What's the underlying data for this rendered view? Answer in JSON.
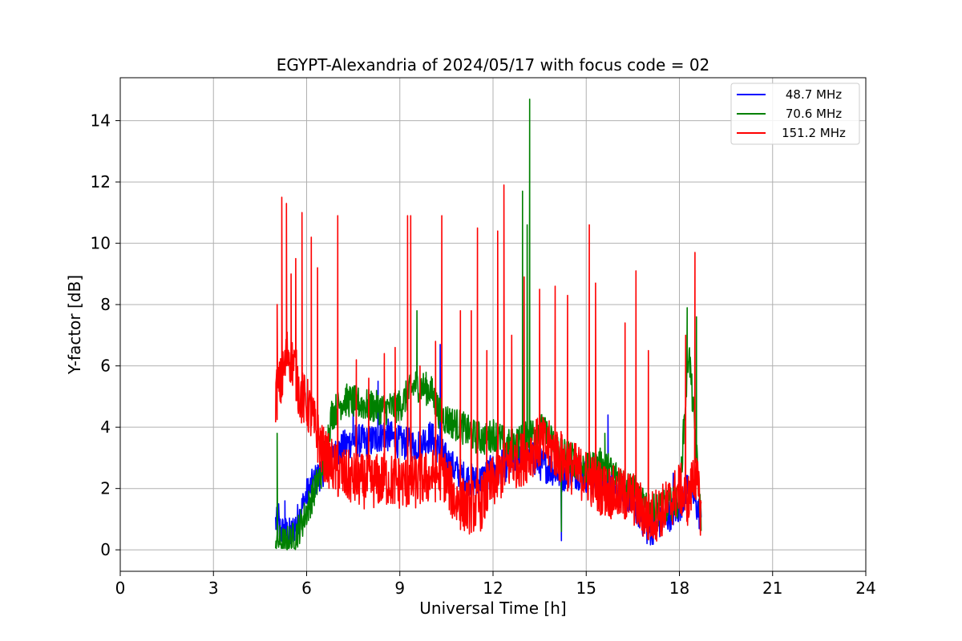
{
  "chart_data": {
    "type": "line",
    "title": "EGYPT-Alexandria of 2024/05/17 with focus code = 02",
    "xlabel": "Universal Time [h]",
    "ylabel": "Y-factor [dB]",
    "xlim": [
      0,
      24
    ],
    "ylim": [
      -0.7,
      15.4
    ],
    "xticks": [
      0,
      3,
      6,
      9,
      12,
      15,
      18,
      21,
      24
    ],
    "yticks": [
      0,
      2,
      4,
      6,
      8,
      10,
      12,
      14
    ],
    "grid": true,
    "legend_position": "top-right",
    "series": [
      {
        "name": "48.7 MHz",
        "color": "#0000ff",
        "x": [
          5.0,
          5.2,
          5.5,
          5.8,
          6.0,
          6.3,
          6.6,
          7.0,
          7.5,
          8.0,
          8.5,
          9.0,
          9.5,
          10.0,
          10.3,
          10.6,
          11.0,
          11.5,
          12.0,
          12.5,
          13.0,
          13.5,
          14.0,
          14.2,
          14.5,
          15.0,
          15.5,
          16.0,
          16.5,
          17.0,
          17.5,
          18.0,
          18.3,
          18.7
        ],
        "y": [
          0.9,
          0.6,
          0.5,
          1.2,
          1.8,
          2.3,
          2.7,
          3.2,
          3.6,
          3.5,
          3.8,
          3.5,
          3.4,
          3.7,
          3.2,
          2.8,
          2.4,
          2.2,
          2.6,
          2.8,
          3.2,
          2.8,
          2.6,
          2.4,
          2.6,
          2.4,
          2.2,
          2.0,
          1.6,
          0.6,
          1.0,
          1.4,
          2.2,
          1.0
        ],
        "spikes": [
          [
            5.1,
            1.5
          ],
          [
            5.3,
            1.6
          ],
          [
            7.5,
            4.9
          ],
          [
            8.3,
            5.5
          ],
          [
            10.3,
            6.7
          ],
          [
            13.5,
            4.2
          ],
          [
            14.2,
            0.3
          ],
          [
            15.7,
            4.4
          ],
          [
            17.8,
            2.5
          ]
        ]
      },
      {
        "name": "70.6 MHz",
        "color": "#008000",
        "x": [
          5.0,
          5.1,
          5.3,
          5.6,
          5.9,
          6.2,
          6.5,
          6.8,
          7.2,
          7.6,
          8.0,
          8.5,
          9.0,
          9.5,
          10.0,
          10.3,
          10.6,
          11.0,
          11.4,
          11.8,
          12.0,
          12.5,
          13.0,
          13.5,
          14.0,
          14.5,
          15.0,
          15.5,
          16.0,
          16.5,
          17.0,
          17.5,
          18.0,
          18.3,
          18.7
        ],
        "y": [
          0.4,
          0.3,
          0.2,
          0.4,
          1.0,
          1.8,
          2.6,
          4.4,
          4.9,
          4.8,
          4.7,
          4.6,
          4.7,
          5.4,
          5.2,
          4.4,
          4.2,
          4.0,
          3.7,
          3.6,
          3.8,
          3.4,
          3.6,
          4.0,
          3.4,
          3.0,
          2.6,
          2.8,
          2.4,
          2.0,
          1.2,
          1.4,
          1.6,
          6.6,
          1.0
        ],
        "spikes": [
          [
            5.05,
            3.8
          ],
          [
            9.55,
            7.8
          ],
          [
            12.95,
            11.7
          ],
          [
            13.1,
            10.6
          ],
          [
            13.18,
            14.7
          ],
          [
            14.2,
            0.6
          ],
          [
            15.6,
            3.8
          ],
          [
            18.25,
            7.9
          ],
          [
            18.55,
            7.6
          ]
        ]
      },
      {
        "name": "151.2 MHz",
        "color": "#ff0000",
        "x": [
          5.0,
          5.2,
          5.4,
          5.6,
          5.8,
          6.0,
          6.2,
          6.5,
          7.0,
          7.5,
          8.0,
          8.5,
          9.0,
          9.5,
          10.0,
          10.4,
          10.8,
          11.2,
          11.6,
          12.0,
          12.5,
          13.0,
          13.5,
          14.0,
          14.5,
          15.0,
          15.5,
          16.0,
          16.5,
          17.0,
          17.3,
          17.6,
          18.0,
          18.3,
          18.5,
          18.7
        ],
        "y": [
          5.0,
          5.5,
          6.5,
          6.0,
          5.0,
          4.8,
          4.2,
          3.2,
          2.5,
          2.3,
          2.2,
          2.3,
          2.2,
          2.2,
          2.4,
          2.5,
          1.6,
          1.4,
          1.5,
          2.2,
          2.8,
          3.0,
          3.5,
          3.2,
          2.7,
          2.4,
          2.0,
          1.8,
          1.7,
          1.0,
          1.2,
          1.4,
          2.0,
          1.6,
          2.6,
          1.2
        ],
        "spikes": [
          [
            5.05,
            8.0
          ],
          [
            5.2,
            11.5
          ],
          [
            5.35,
            11.3
          ],
          [
            5.5,
            9.0
          ],
          [
            5.65,
            9.5
          ],
          [
            5.85,
            11.0
          ],
          [
            6.15,
            10.2
          ],
          [
            6.35,
            9.2
          ],
          [
            7.0,
            10.9
          ],
          [
            7.6,
            6.2
          ],
          [
            8.0,
            5.6
          ],
          [
            8.5,
            6.4
          ],
          [
            8.85,
            6.6
          ],
          [
            9.25,
            10.9
          ],
          [
            9.35,
            10.9
          ],
          [
            9.65,
            6.0
          ],
          [
            10.15,
            6.8
          ],
          [
            10.35,
            10.9
          ],
          [
            10.95,
            7.8
          ],
          [
            11.3,
            7.8
          ],
          [
            11.5,
            10.5
          ],
          [
            11.8,
            6.5
          ],
          [
            12.15,
            10.4
          ],
          [
            12.35,
            11.9
          ],
          [
            12.6,
            7.0
          ],
          [
            13.0,
            8.9
          ],
          [
            13.5,
            8.5
          ],
          [
            14.0,
            8.6
          ],
          [
            14.4,
            8.3
          ],
          [
            15.1,
            10.6
          ],
          [
            15.3,
            8.7
          ],
          [
            16.25,
            7.4
          ],
          [
            16.6,
            9.1
          ],
          [
            17.0,
            6.5
          ],
          [
            18.2,
            7.0
          ],
          [
            18.5,
            9.7
          ]
        ]
      }
    ]
  }
}
